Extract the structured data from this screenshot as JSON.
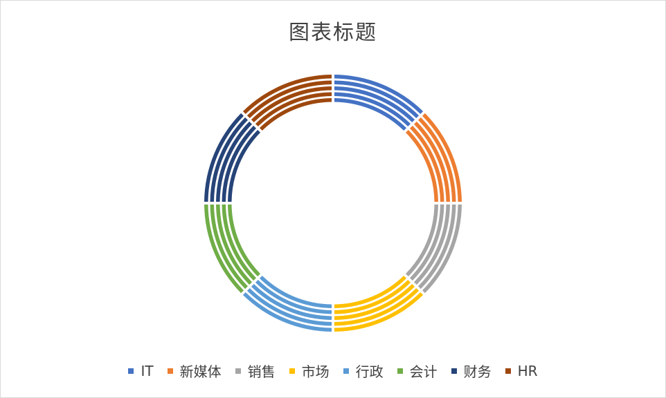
{
  "chart_data": {
    "type": "pie",
    "variant": "multi-ring doughnut",
    "title": "图表标题",
    "categories": [
      "IT",
      "新媒体",
      "销售",
      "市场",
      "行政",
      "会计",
      "财务",
      "HR"
    ],
    "colors": [
      "#4472C4",
      "#ED7D31",
      "#A5A5A5",
      "#FFC000",
      "#5B9BD5",
      "#70AD47",
      "#264478",
      "#9E480E"
    ],
    "series": [
      {
        "values": [
          1,
          1,
          1,
          1,
          1,
          1,
          1,
          1
        ]
      },
      {
        "values": [
          1,
          1,
          1,
          1,
          1,
          1,
          1,
          1
        ]
      },
      {
        "values": [
          1,
          1,
          1,
          1,
          1,
          1,
          1,
          1
        ]
      },
      {
        "values": [
          1,
          1,
          1,
          1,
          1,
          1,
          1,
          1
        ]
      },
      {
        "values": [
          1,
          1,
          1,
          1,
          1,
          1,
          1,
          1
        ]
      }
    ],
    "legend_position": "bottom"
  }
}
